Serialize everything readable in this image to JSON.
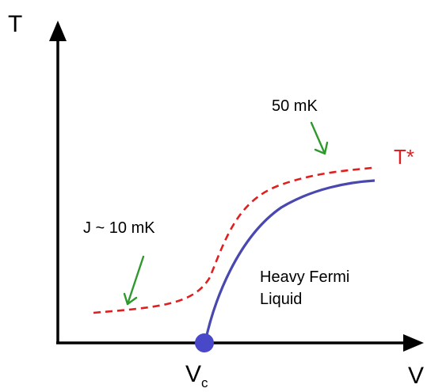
{
  "axes": {
    "y_label": "T",
    "x_label": "V"
  },
  "critical_point": {
    "label_main": "V",
    "label_sub": "c",
    "color": "#4848c8"
  },
  "curves": {
    "t_star": {
      "label": "T*",
      "color": "#e02020",
      "style": "dashed"
    },
    "fermi_liquid_boundary": {
      "color": "#4848b0",
      "style": "solid"
    }
  },
  "annotations": {
    "top_scale": "50 mK",
    "left_scale": "J ~ 10 mK",
    "arrow_color": "#2e9a2e"
  },
  "region": {
    "line1": "Heavy Fermi",
    "line2": "Liquid",
    "color": "#4848c0"
  }
}
